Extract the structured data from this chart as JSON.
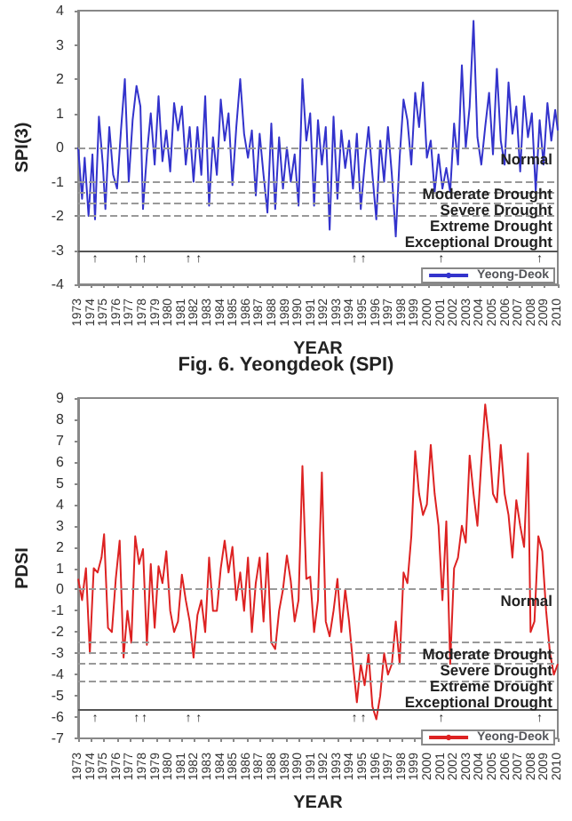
{
  "chart_data": [
    {
      "type": "line",
      "title": "Fig. 6. Yeongdeok (SPI)",
      "xlabel": "YEAR",
      "ylabel": "SPI(3)",
      "marker": "none",
      "legend": "bottom right",
      "xlim": [
        1973,
        2010
      ],
      "ylim": [
        -4,
        4
      ],
      "xticks": [
        1973,
        1974,
        1975,
        1976,
        1977,
        1978,
        1979,
        1980,
        1981,
        1982,
        1983,
        1984,
        1985,
        1986,
        1987,
        1988,
        1989,
        1990,
        1991,
        1992,
        1993,
        1994,
        1995,
        1996,
        1997,
        1998,
        1999,
        2000,
        2001,
        2002,
        2003,
        2004,
        2005,
        2006,
        2007,
        2008,
        2009,
        2010
      ],
      "yticks": [
        -4,
        -3,
        -2,
        -1,
        0,
        1,
        2,
        3,
        4
      ],
      "x": [
        1973.0,
        1973.3,
        1973.5,
        1973.8,
        1974.1,
        1974.3,
        1974.6,
        1974.9,
        1975.1,
        1975.4,
        1975.7,
        1976.0,
        1976.3,
        1976.6,
        1976.9,
        1977.2,
        1977.5,
        1977.8,
        1978.0,
        1978.3,
        1978.6,
        1978.9,
        1979.2,
        1979.5,
        1979.8,
        1980.1,
        1980.4,
        1980.7,
        1981.0,
        1981.3,
        1981.6,
        1981.9,
        1982.2,
        1982.5,
        1982.8,
        1983.1,
        1983.4,
        1983.7,
        1984.0,
        1984.3,
        1984.6,
        1984.9,
        1985.2,
        1985.5,
        1985.8,
        1986.1,
        1986.4,
        1986.7,
        1987.0,
        1987.3,
        1987.6,
        1987.9,
        1988.2,
        1988.5,
        1988.8,
        1989.1,
        1989.4,
        1989.7,
        1990.0,
        1990.3,
        1990.6,
        1990.9,
        1991.2,
        1991.5,
        1991.8,
        1992.1,
        1992.4,
        1992.7,
        1993.0,
        1993.3,
        1993.6,
        1993.9,
        1994.2,
        1994.5,
        1994.8,
        1995.1,
        1995.4,
        1995.7,
        1996.0,
        1996.3,
        1996.6,
        1996.9,
        1997.2,
        1997.5,
        1997.8,
        1998.1,
        1998.4,
        1998.7,
        1999.0,
        1999.3,
        1999.6,
        1999.9,
        2000.2,
        2000.5,
        2000.8,
        2001.1,
        2001.4,
        2001.7,
        2002.0,
        2002.3,
        2002.6,
        2002.9,
        2003.2,
        2003.5,
        2003.8,
        2004.1,
        2004.4,
        2004.7,
        2005.0,
        2005.3,
        2005.6,
        2005.9,
        2006.2,
        2006.5,
        2006.8,
        2007.1,
        2007.4,
        2007.7,
        2008.0,
        2008.3,
        2008.6,
        2008.9,
        2009.2,
        2009.5,
        2009.8,
        2010.0
      ],
      "series": [
        {
          "name": "Yeong-Deok",
          "color": "#3333cc",
          "values": [
            0,
            -1.5,
            -0.3,
            -2.0,
            -0.2,
            -2.1,
            0.9,
            -0.5,
            -1.8,
            0.6,
            -0.8,
            -1.2,
            0.5,
            2.0,
            -1.0,
            0.8,
            1.8,
            1.2,
            -1.8,
            -0.2,
            1.0,
            -0.5,
            1.5,
            -0.4,
            0.5,
            -0.7,
            1.3,
            0.5,
            1.2,
            -0.5,
            0.6,
            -1.0,
            0.6,
            -0.8,
            1.5,
            -1.7,
            0.3,
            -0.8,
            1.4,
            0.2,
            1.0,
            -1.1,
            0.6,
            2.0,
            0.4,
            -0.3,
            0.5,
            -1.4,
            0.4,
            -0.8,
            -1.9,
            0.7,
            -1.8,
            0.3,
            -1.2,
            0.0,
            -1.0,
            -0.2,
            -1.7,
            2.0,
            0.2,
            1.0,
            -1.7,
            0.8,
            -0.5,
            0.6,
            -2.4,
            0.9,
            -1.5,
            0.5,
            -0.6,
            0.2,
            -1.2,
            0.4,
            -1.8,
            -0.5,
            0.6,
            -0.8,
            -2.1,
            0.2,
            -1.0,
            0.6,
            -0.8,
            -2.6,
            -0.3,
            1.4,
            0.8,
            -0.5,
            1.6,
            0.6,
            1.9,
            -0.3,
            0.2,
            -1.3,
            -0.2,
            -1.2,
            -0.6,
            -1.3,
            0.7,
            -0.5,
            2.4,
            0.0,
            1.2,
            3.7,
            0.3,
            -0.5,
            0.6,
            1.6,
            -0.2,
            2.3,
            0.2,
            -0.5,
            1.9,
            0.4,
            1.2,
            -0.7,
            1.5,
            0.3,
            1.0,
            -1.3,
            0.8,
            -0.5,
            1.3,
            0.2,
            1.1,
            0.5
          ]
        }
      ],
      "ref_lines": [
        {
          "axis": "y",
          "value": 0,
          "label": "Normal",
          "color": "#999999",
          "line_style": "dashed"
        },
        {
          "axis": "y",
          "value": -1,
          "label": "Moderate Drought",
          "color": "#999999",
          "line_style": "dashed"
        },
        {
          "axis": "y",
          "value": -1.3,
          "label": "Severe Drought",
          "color": "#999999",
          "line_style": "dashed"
        },
        {
          "axis": "y",
          "value": -1.6,
          "label": "Extreme Drought",
          "color": "#999999",
          "line_style": "dashed"
        },
        {
          "axis": "y",
          "value": -2,
          "label": "Exceptional Drought",
          "color": "#999999",
          "line_style": "dashed"
        },
        {
          "axis": "y",
          "value": -3,
          "color": "#555555",
          "line_style": "solid"
        }
      ],
      "annotations": [
        {
          "text": "↑",
          "x": 1974.3,
          "y": -3.1
        },
        {
          "text": "↑",
          "x": 1977.5,
          "y": -3.1
        },
        {
          "text": "↑",
          "x": 1978.1,
          "y": -3.1
        },
        {
          "text": "↑",
          "x": 1981.5,
          "y": -3.1
        },
        {
          "text": "↑",
          "x": 1982.3,
          "y": -3.1
        },
        {
          "text": "↑",
          "x": 1994.3,
          "y": -3.1
        },
        {
          "text": "↑",
          "x": 1995.0,
          "y": -3.1
        },
        {
          "text": "↑",
          "x": 2001.0,
          "y": -3.1
        },
        {
          "text": "↑",
          "x": 2008.6,
          "y": -3.1
        }
      ]
    },
    {
      "type": "line",
      "xlabel": "YEAR",
      "ylabel": "PDSI",
      "marker": "none",
      "legend": "bottom right",
      "xlim": [
        1973,
        2010
      ],
      "ylim": [
        -7,
        9
      ],
      "xticks": [
        1973,
        1974,
        1975,
        1976,
        1977,
        1978,
        1979,
        1980,
        1981,
        1982,
        1983,
        1984,
        1985,
        1986,
        1987,
        1988,
        1989,
        1990,
        1991,
        1992,
        1993,
        1994,
        1995,
        1996,
        1997,
        1998,
        1999,
        2000,
        2001,
        2002,
        2003,
        2004,
        2005,
        2006,
        2007,
        2008,
        2009,
        2010
      ],
      "yticks": [
        -7,
        -6,
        -5,
        -4,
        -3,
        -2,
        -1,
        0,
        1,
        2,
        3,
        4,
        5,
        6,
        7,
        8,
        9
      ],
      "x": [
        1973.0,
        1973.3,
        1973.6,
        1973.9,
        1974.2,
        1974.5,
        1974.8,
        1975.0,
        1975.3,
        1975.6,
        1975.9,
        1976.2,
        1976.5,
        1976.8,
        1977.1,
        1977.4,
        1977.7,
        1978.0,
        1978.3,
        1978.6,
        1978.9,
        1979.2,
        1979.5,
        1979.8,
        1980.1,
        1980.4,
        1980.7,
        1981.0,
        1981.3,
        1981.6,
        1981.9,
        1982.2,
        1982.5,
        1982.8,
        1983.1,
        1983.4,
        1983.7,
        1984.0,
        1984.3,
        1984.6,
        1984.9,
        1985.2,
        1985.5,
        1985.8,
        1986.1,
        1986.4,
        1986.7,
        1987.0,
        1987.3,
        1987.6,
        1987.9,
        1988.2,
        1988.5,
        1988.8,
        1989.1,
        1989.4,
        1989.7,
        1990.0,
        1990.3,
        1990.6,
        1990.9,
        1991.2,
        1991.5,
        1991.8,
        1992.1,
        1992.4,
        1992.7,
        1993.0,
        1993.3,
        1993.6,
        1993.9,
        1994.2,
        1994.5,
        1994.8,
        1995.1,
        1995.4,
        1995.7,
        1996.0,
        1996.3,
        1996.6,
        1996.9,
        1997.2,
        1997.5,
        1997.8,
        1998.1,
        1998.4,
        1998.7,
        1999.0,
        1999.3,
        1999.6,
        1999.9,
        2000.2,
        2000.5,
        2000.8,
        2001.1,
        2001.4,
        2001.7,
        2002.0,
        2002.3,
        2002.6,
        2002.9,
        2003.2,
        2003.5,
        2003.8,
        2004.1,
        2004.4,
        2004.7,
        2005.0,
        2005.3,
        2005.6,
        2005.9,
        2006.2,
        2006.5,
        2006.8,
        2007.1,
        2007.4,
        2007.7,
        2007.9,
        2008.2,
        2008.5,
        2008.8,
        2009.1,
        2009.4,
        2009.7,
        2010.0
      ],
      "series": [
        {
          "name": "Yeong-Deok",
          "color": "#dd2222",
          "values": [
            0.5,
            -0.5,
            1.0,
            -3.0,
            1.0,
            0.8,
            1.5,
            2.6,
            -1.8,
            -2.0,
            0.5,
            2.3,
            -3.2,
            -1.0,
            -2.5,
            2.5,
            1.2,
            1.9,
            -2.6,
            1.2,
            -1.8,
            1.1,
            0.3,
            1.8,
            -1.0,
            -2.0,
            -1.5,
            0.7,
            -0.5,
            -1.5,
            -3.2,
            -1.2,
            -0.5,
            -2.0,
            1.5,
            -1.0,
            -1.0,
            1.0,
            2.3,
            0.8,
            2.0,
            -0.5,
            0.8,
            -1.0,
            1.5,
            -2.0,
            0.3,
            1.5,
            -1.5,
            1.7,
            -2.5,
            -2.8,
            -1.0,
            0.0,
            1.6,
            0.4,
            -1.5,
            -0.5,
            5.8,
            0.5,
            0.6,
            -2.0,
            -0.5,
            5.5,
            -1.5,
            -2.2,
            -1.0,
            0.5,
            -2.0,
            0.0,
            -1.5,
            -3.5,
            -5.3,
            -3.5,
            -4.5,
            -3.0,
            -5.5,
            -6.1,
            -5.0,
            -3.0,
            -4.0,
            -3.5,
            -1.5,
            -3.5,
            0.8,
            0.3,
            2.5,
            6.5,
            4.5,
            3.5,
            4.0,
            6.8,
            4.5,
            3.0,
            -0.5,
            3.2,
            -3.5,
            1.0,
            1.5,
            3.0,
            2.2,
            6.3,
            4.5,
            3.0,
            6.0,
            8.7,
            7.0,
            4.5,
            4.1,
            6.8,
            4.5,
            3.5,
            1.5,
            4.2,
            3.0,
            2.0,
            6.4,
            -2.0,
            -1.5,
            2.5,
            1.8,
            -1.0,
            -3.0,
            -4.0,
            -3.5
          ]
        }
      ],
      "ref_lines": [
        {
          "axis": "y",
          "value": 0,
          "label": "Normal",
          "color": "#999999",
          "line_style": "dashed"
        },
        {
          "axis": "y",
          "value": -2.5,
          "label": "Moderate Drought",
          "color": "#999999",
          "line_style": "dashed"
        },
        {
          "axis": "y",
          "value": -3,
          "label": "Severe Drought",
          "color": "#999999",
          "line_style": "dashed"
        },
        {
          "axis": "y",
          "value": -3.5,
          "label": "Extreme Drought",
          "color": "#999999",
          "line_style": "dashed"
        },
        {
          "axis": "y",
          "value": -4.3,
          "label": "Exceptional Drought",
          "color": "#999999",
          "line_style": "dashed"
        },
        {
          "axis": "y",
          "value": -5.6,
          "color": "#555555",
          "line_style": "solid"
        }
      ],
      "annotations": [
        {
          "text": "↑",
          "x": 1974.3,
          "y": -5.8
        },
        {
          "text": "↑",
          "x": 1977.5,
          "y": -5.8
        },
        {
          "text": "↑",
          "x": 1978.1,
          "y": -5.8
        },
        {
          "text": "↑",
          "x": 1981.5,
          "y": -5.8
        },
        {
          "text": "↑",
          "x": 1982.3,
          "y": -5.8
        },
        {
          "text": "↑",
          "x": 1994.3,
          "y": -5.8
        },
        {
          "text": "↑",
          "x": 1995.0,
          "y": -5.8
        },
        {
          "text": "↑",
          "x": 2001.0,
          "y": -5.8
        },
        {
          "text": "↑",
          "x": 2008.6,
          "y": -5.8
        }
      ]
    }
  ]
}
